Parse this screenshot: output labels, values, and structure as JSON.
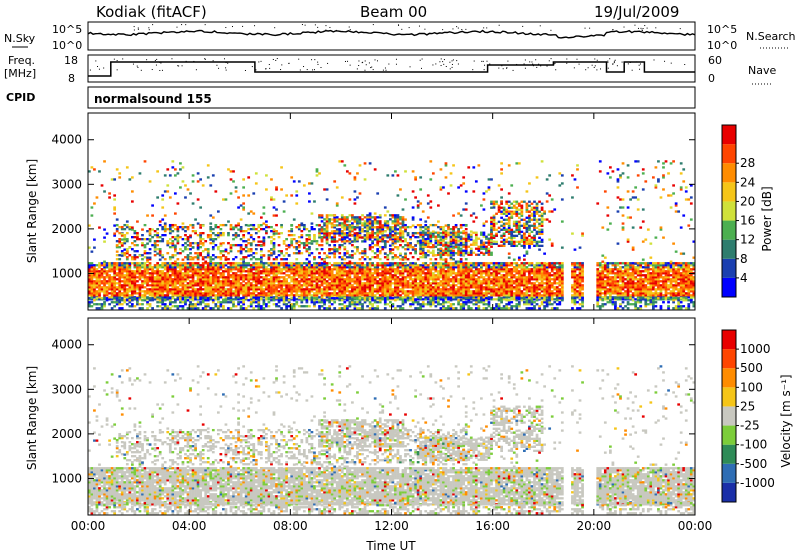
{
  "header": {
    "station": "Kodiak (fitACF)",
    "beam": "Beam 00",
    "date": "19/Jul/2009"
  },
  "nsky_panel": {
    "left_label": "N.Sky",
    "right_label": "N.Search",
    "left_ticks": [
      "10^5",
      "10^0"
    ],
    "right_ticks": [
      "10^5",
      "10^0"
    ]
  },
  "freq_panel": {
    "left_label_1": "Freq.",
    "left_label_2": "[MHz]",
    "right_label": "Nave",
    "left_ticks": [
      "18",
      "8"
    ],
    "right_ticks": [
      "60",
      "0"
    ]
  },
  "cpid": {
    "label": "CPID",
    "program": "normalsound 155"
  },
  "chart_data": [
    {
      "type": "heatmap",
      "title": "",
      "xlabel": "",
      "ylabel": "Slant Range [km]",
      "x_ticks": [
        "00:00",
        "04:00",
        "08:00",
        "12:00",
        "16:00",
        "20:00",
        "00:00"
      ],
      "y_ticks": [
        1000,
        2000,
        3000,
        4000
      ],
      "xlim": [
        0,
        24
      ],
      "ylim": [
        180,
        4600
      ],
      "colorbar": {
        "label": "Power [dB]",
        "ticks": [
          "4",
          "8",
          "12",
          "16",
          "20",
          "24",
          "28"
        ],
        "colors": [
          "#0000ff",
          "#1a3fb0",
          "#2e7d6e",
          "#4caf50",
          "#cfe13a",
          "#f5c518",
          "#ff8c00",
          "#ff4500",
          "#e80000"
        ]
      }
    },
    {
      "type": "heatmap",
      "title": "",
      "xlabel": "Time UT",
      "ylabel": "Slant Range [km]",
      "x_ticks": [
        "00:00",
        "04:00",
        "08:00",
        "12:00",
        "16:00",
        "20:00",
        "00:00"
      ],
      "y_ticks": [
        1000,
        2000,
        3000,
        4000
      ],
      "xlim": [
        0,
        24
      ],
      "ylim": [
        180,
        4600
      ],
      "colorbar": {
        "label": "Velocity [m s⁻¹]",
        "ticks": [
          "1000",
          "500",
          "100",
          "25",
          "-25",
          "-100",
          "-500",
          "-1000"
        ],
        "colors": [
          "#1a2fa8",
          "#2e6db4",
          "#2e8b57",
          "#7ccd3a",
          "#c8c8c0",
          "#f5c518",
          "#ff8c00",
          "#ff4500",
          "#e80000"
        ]
      }
    }
  ]
}
